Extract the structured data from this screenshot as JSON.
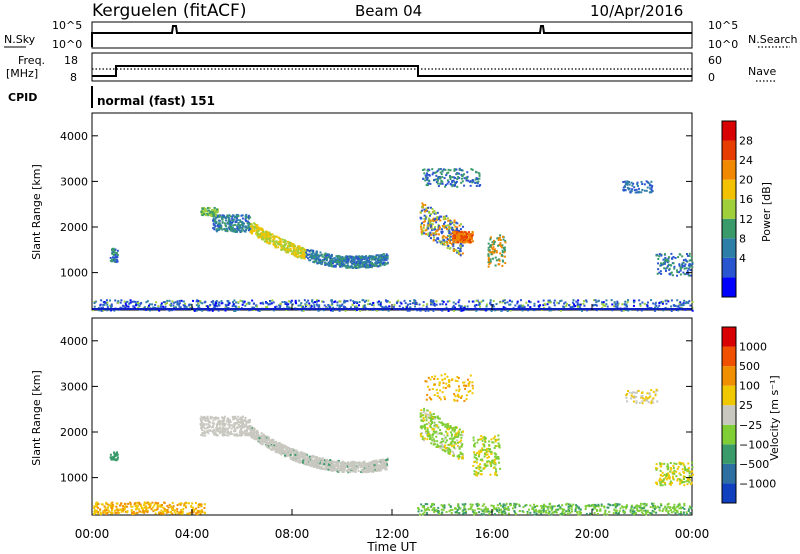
{
  "header": {
    "station": "Kerguelen (fitACF)",
    "beam": "Beam 04",
    "date": "10/Apr/2016"
  },
  "top_panels": {
    "nsky_label": "N.Sky",
    "nsky_ticks": [
      "10^5",
      "10^0"
    ],
    "nsearch_label": "N.Search",
    "nsearch_ticks": [
      "10^5",
      "10^0"
    ],
    "freq_label": "Freq.",
    "freq_unit": "[MHz]",
    "freq_ticks": [
      "18",
      "8"
    ],
    "nave_label": "Nave",
    "nave_ticks": [
      "60",
      "0"
    ],
    "cpid_label": "CPID",
    "cpid_text": "normal (fast) 151"
  },
  "chart_data": [
    {
      "type": "heatmap",
      "name": "power",
      "ylabel": "Slant Range [km]",
      "xlabel": "Time UT",
      "x_ticks": [
        "00:00",
        "04:00",
        "08:00",
        "12:00",
        "16:00",
        "20:00",
        "00:00"
      ],
      "xlim_hours": [
        0,
        24
      ],
      "ylim_km": [
        180,
        4500
      ],
      "y_ticks": [
        1000,
        2000,
        3000,
        4000
      ],
      "colorbar_label": "Power [dB]",
      "colorbar_ticks": [
        "28",
        "24",
        "20",
        "16",
        "12",
        "8",
        "4"
      ],
      "colorbar_colors": [
        "#0000ff",
        "#2a55d0",
        "#2e7fa8",
        "#3a9a6a",
        "#9fcf3a",
        "#f2c200",
        "#f08800",
        "#e83d00",
        "#d80000"
      ],
      "features": [
        {
          "name": "u-shaped echo band",
          "t": [
            6.0,
            12.0
          ],
          "range_km": [
            1100,
            2600
          ]
        },
        {
          "name": "post-midnight echoes",
          "t": [
            13.0,
            16.5
          ],
          "range_km": [
            700,
            3500
          ]
        },
        {
          "name": "near-range ground clutter",
          "t": [
            0,
            24
          ],
          "range_km": [
            180,
            500
          ]
        }
      ]
    },
    {
      "type": "heatmap",
      "name": "velocity",
      "ylabel": "Slant Range [km]",
      "xlabel": "Time UT",
      "x_ticks": [
        "00:00",
        "04:00",
        "08:00",
        "12:00",
        "16:00",
        "20:00",
        "00:00"
      ],
      "xlim_hours": [
        0,
        24
      ],
      "ylim_km": [
        180,
        4500
      ],
      "y_ticks": [
        1000,
        2000,
        3000,
        4000
      ],
      "colorbar_label": "Velocity [m s⁻¹]",
      "colorbar_ticks": [
        "1000",
        "500",
        "100",
        "25",
        "−25",
        "−100",
        "−500",
        "−1000"
      ],
      "colorbar_colors": [
        "#1040c0",
        "#2d6fa0",
        "#3a9a6a",
        "#7fce35",
        "#c8c8c0",
        "#f0c800",
        "#f09000",
        "#f05000",
        "#d80000"
      ]
    }
  ]
}
